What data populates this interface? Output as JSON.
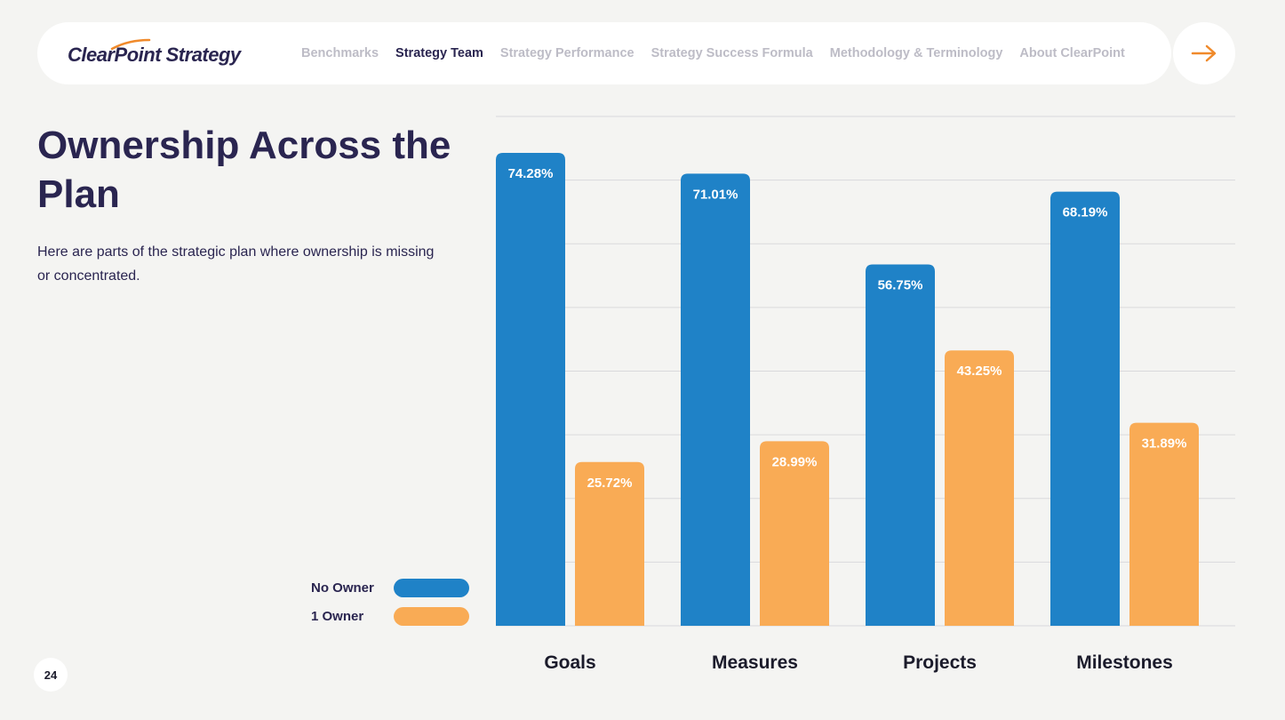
{
  "nav": {
    "logo": "ClearPoint Strategy",
    "items": [
      {
        "label": "Benchmarks",
        "active": false
      },
      {
        "label": "Strategy Team",
        "active": true
      },
      {
        "label": "Strategy Performance",
        "active": false
      },
      {
        "label": "Strategy Success Formula",
        "active": false
      },
      {
        "label": "Methodology & Terminology",
        "active": false
      },
      {
        "label": "About ClearPoint",
        "active": false
      }
    ],
    "next_icon": "arrow-right-icon"
  },
  "page": {
    "title": "Ownership Across the Plan",
    "subtitle": "Here are parts of the strategic plan where ownership is missing or concentrated.",
    "page_number": "24"
  },
  "colors": {
    "no_owner": "#1f82c7",
    "one_owner": "#f9ab55",
    "navy": "#2a2550",
    "accent": "#f08a2b"
  },
  "chart_data": {
    "type": "bar",
    "categories": [
      "Goals",
      "Measures",
      "Projects",
      "Milestones"
    ],
    "series": [
      {
        "name": "No Owner",
        "values": [
          74.28,
          71.01,
          56.75,
          68.19
        ]
      },
      {
        "name": "1 Owner",
        "values": [
          25.72,
          28.99,
          43.25,
          31.89
        ]
      }
    ],
    "value_suffix": "%",
    "ylim": [
      0,
      80
    ],
    "grid": true,
    "legend": "bottom-left"
  }
}
